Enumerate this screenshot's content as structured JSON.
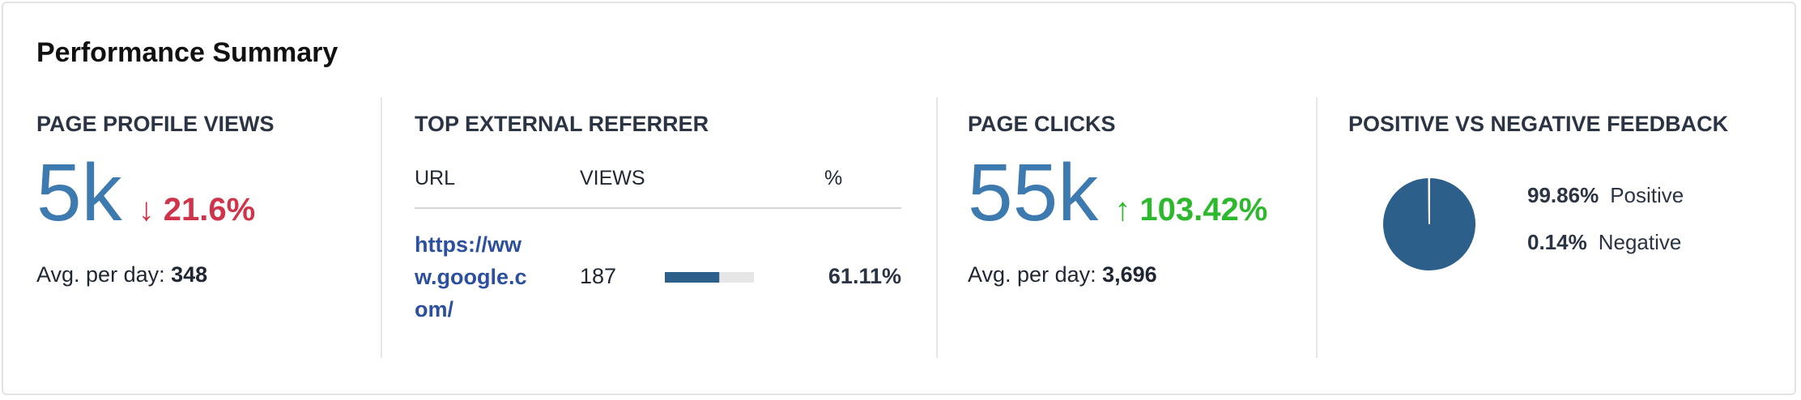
{
  "title": "Performance Summary",
  "page_profile_views": {
    "heading": "PAGE PROFILE VIEWS",
    "value": "5k",
    "change": "21.6%",
    "avg_label": "Avg. per day:",
    "avg_value": "348"
  },
  "top_external_referrer": {
    "heading": "TOP EXTERNAL REFERRER",
    "columns": [
      "URL",
      "VIEWS",
      "%"
    ],
    "rows": [
      {
        "url": "https://www.google.com/",
        "views": "187",
        "percent": 61.11,
        "percent_label": "61.11%"
      }
    ]
  },
  "page_clicks": {
    "heading": "PAGE CLICKS",
    "value": "55k",
    "change": "103.42%",
    "avg_label": "Avg. per day:",
    "avg_value": "3,696"
  },
  "feedback": {
    "heading": "POSITIVE VS NEGATIVE FEEDBACK",
    "type": "pie",
    "slices": [
      {
        "name": "Positive",
        "value": 99.86,
        "label": "99.86%",
        "color": "#2c5f8a"
      },
      {
        "name": "Negative",
        "value": 0.14,
        "label": "0.14%",
        "color": "#2c5f8a"
      }
    ]
  }
}
